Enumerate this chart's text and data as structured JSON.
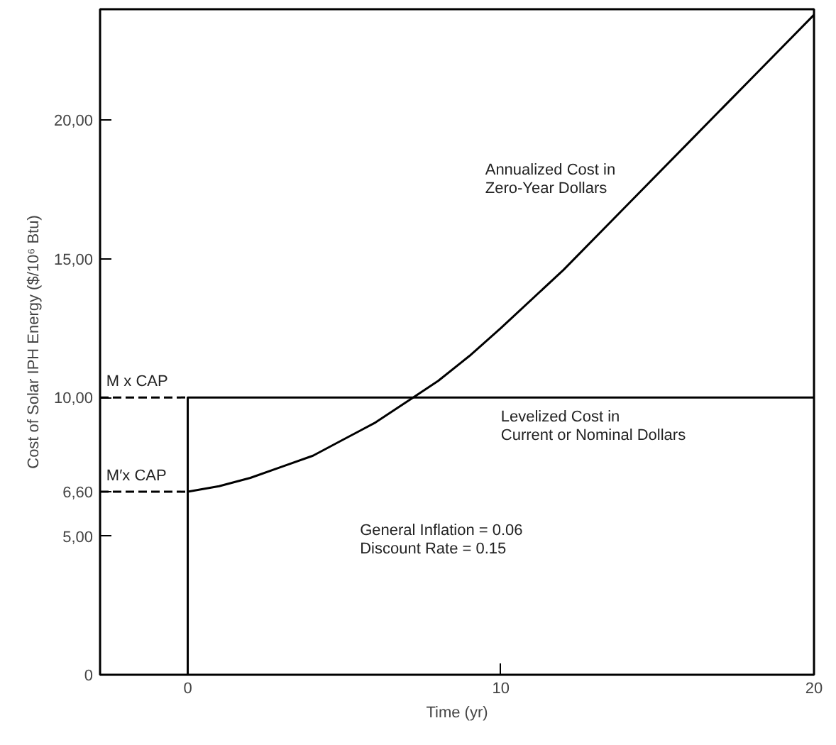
{
  "chart_data": {
    "type": "line",
    "xlabel": "Time (yr)",
    "ylabel": "Cost of Solar IPH Energy ($/10⁶ Btu)",
    "xlim": [
      -2.8,
      20
    ],
    "xticks": [
      0,
      10,
      20
    ],
    "ylim": [
      0,
      24
    ],
    "yticks": [
      {
        "value": 0,
        "label": "0"
      },
      {
        "value": 5,
        "label": "5,00"
      },
      {
        "value": 6.6,
        "label": "6,60"
      },
      {
        "value": 10,
        "label": "10,00"
      },
      {
        "value": 15,
        "label": "15,00"
      },
      {
        "value": 20,
        "label": "20,00"
      }
    ],
    "grid": false,
    "line_style": "solid",
    "marker": "none",
    "series": [
      {
        "color": "#000000",
        "x": [
          0,
          1,
          2,
          3,
          4,
          5,
          6,
          7.2,
          8,
          9,
          10,
          12,
          14,
          16,
          18,
          20
        ],
        "values": [
          6.6,
          6.8,
          7.1,
          7.5,
          7.9,
          8.5,
          9.1,
          10,
          10.6,
          11.5,
          12.5,
          14.6,
          16.9,
          19.2,
          21.5,
          23.8
        ]
      },
      {
        "color": "#000000",
        "x": [
          0,
          0,
          20
        ],
        "values": [
          0,
          10,
          10
        ]
      },
      {
        "color": "#000000",
        "line_style": "dashed",
        "x": [
          -2.8,
          0
        ],
        "values": [
          10,
          10
        ]
      },
      {
        "color": "#000000",
        "line_style": "dashed",
        "x": [
          -2.8,
          0
        ],
        "values": [
          6.6,
          6.6
        ]
      }
    ],
    "annotations": [
      "Annualized Cost in\nZero-Year Dollars",
      "Levelized Cost in\nCurrent or Nominal Dollars",
      "M x CAP",
      "M′x CAP",
      "General Inflation = 0.06\nDiscount Rate = 0.15"
    ]
  }
}
